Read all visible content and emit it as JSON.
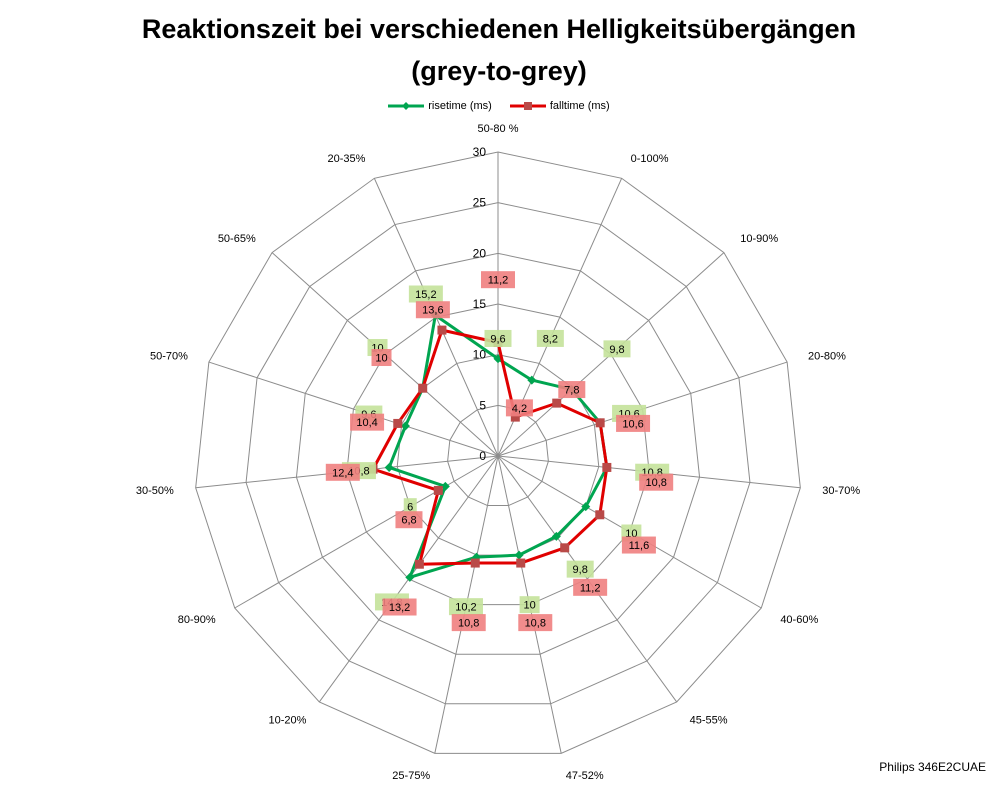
{
  "page": {
    "title_line1": "Reaktionszeit bei verschiedenen Helligkeitsübergängen",
    "title_line2": "(grey-to-grey)",
    "credit": "Philips 346E2CUAE"
  },
  "chart_data": {
    "type": "radar",
    "title": "Reaktionszeit bei verschiedenen Helligkeitsübergängen (grey-to-grey)",
    "categories": [
      "50-80 %",
      "0-100%",
      "10-90%",
      "20-80%",
      "30-70%",
      "40-60%",
      "45-55%",
      "47-52%",
      "25-75%",
      "10-20%",
      "80-90%",
      "30-50%",
      "50-70%",
      "50-65%",
      "20-35%"
    ],
    "rlim": [
      0,
      30
    ],
    "r_ticks": [
      "0",
      "5",
      "10",
      "15",
      "20",
      "25",
      "30"
    ],
    "legend_position": "top",
    "series": [
      {
        "name": "risetime (ms)",
        "color": "#00a550",
        "marker": "diamond",
        "values": [
          9.6,
          8.2,
          9.8,
          10.6,
          10.8,
          10,
          9.8,
          10,
          10.2,
          14.8,
          6,
          10.8,
          9.6,
          10,
          15.2
        ],
        "labels": [
          "9,6",
          "8,2",
          "9,8",
          "10,6",
          "10,8",
          "10",
          "9,8",
          "10",
          "10,2",
          "14,8",
          "6",
          "10,8",
          "9,6",
          "10",
          "15,2"
        ],
        "label_color": "#c4e29a"
      },
      {
        "name": "falltime (ms)",
        "color": "#e00000",
        "marker": "square",
        "marker_color": "#b94a48",
        "values": [
          11.2,
          4.2,
          7.8,
          10.6,
          10.8,
          11.6,
          11.2,
          10.8,
          10.8,
          13.2,
          6.8,
          12.4,
          10.4,
          10,
          13.6
        ],
        "labels": [
          "11,2",
          "4,2",
          "7,8",
          "10,6",
          "10,8",
          "11,6",
          "11,2",
          "10,8",
          "10,8",
          "13,2",
          "6,8",
          "12,4",
          "10,4",
          "10",
          "13,6"
        ],
        "label_color": "#f08080"
      }
    ]
  }
}
